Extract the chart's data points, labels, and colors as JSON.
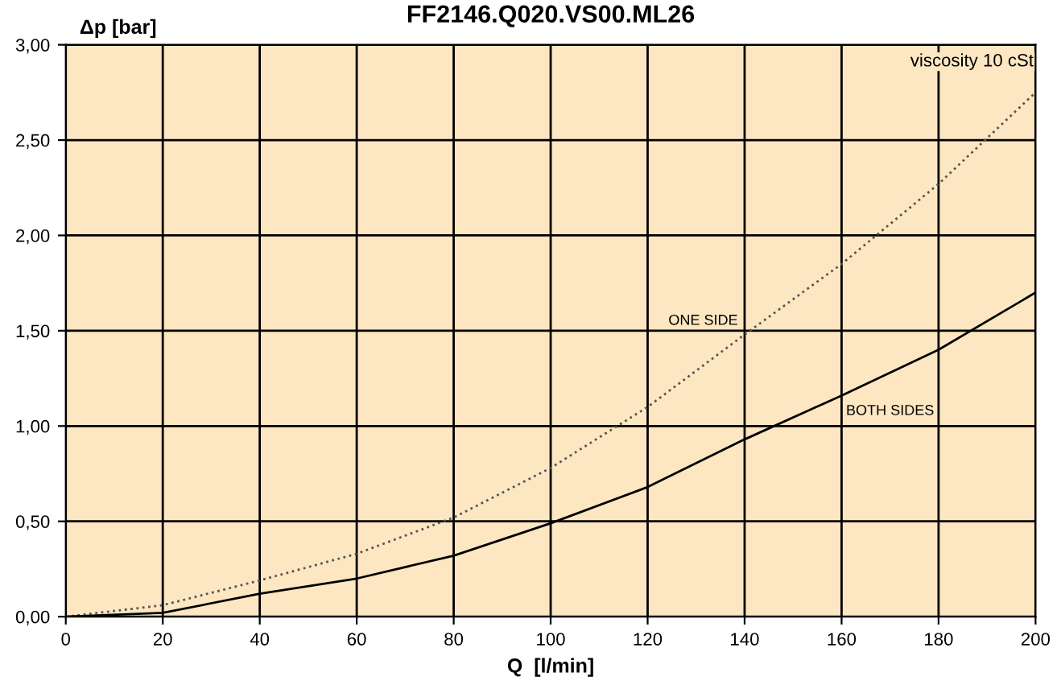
{
  "chart_data": {
    "type": "line",
    "title": "FF2146.Q020.VS00.ML26",
    "xlabel": "Q  [l/min]",
    "ylabel": "Δp [bar]",
    "annotations": [
      "viscosity 10 cSt",
      {
        "text": "ONE SIDE",
        "x": 140,
        "y": 1.48
      },
      {
        "text": "BOTH SIDES",
        "x": 160,
        "y": 1.16
      }
    ],
    "x": [
      0,
      20,
      40,
      60,
      80,
      100,
      120,
      140,
      160,
      180,
      200
    ],
    "series": [
      {
        "color": "#555555",
        "line_style": "dotted",
        "values": [
          0,
          0.06,
          0.19,
          0.33,
          0.52,
          0.78,
          1.1,
          1.48,
          1.85,
          2.27,
          2.75
        ]
      },
      {
        "color": "#000000",
        "line_style": "solid",
        "values": [
          0,
          0.02,
          0.12,
          0.2,
          0.32,
          0.49,
          0.68,
          0.93,
          1.16,
          1.4,
          1.7
        ]
      }
    ],
    "xlim": [
      0,
      200
    ],
    "xticks": [
      0,
      20,
      40,
      60,
      80,
      100,
      120,
      140,
      160,
      180,
      200
    ],
    "ylim": [
      0,
      3
    ],
    "yticks": [
      {
        "value": 0,
        "label": "0,00"
      },
      {
        "value": 0.5,
        "label": "0,50"
      },
      {
        "value": 1,
        "label": "1,00"
      },
      {
        "value": 1.5,
        "label": "1,50"
      },
      {
        "value": 2,
        "label": "2,00"
      },
      {
        "value": 2.5,
        "label": "2,50"
      },
      {
        "value": 3,
        "label": "3,00"
      }
    ],
    "grid": true,
    "legend": false,
    "marker": "none"
  }
}
